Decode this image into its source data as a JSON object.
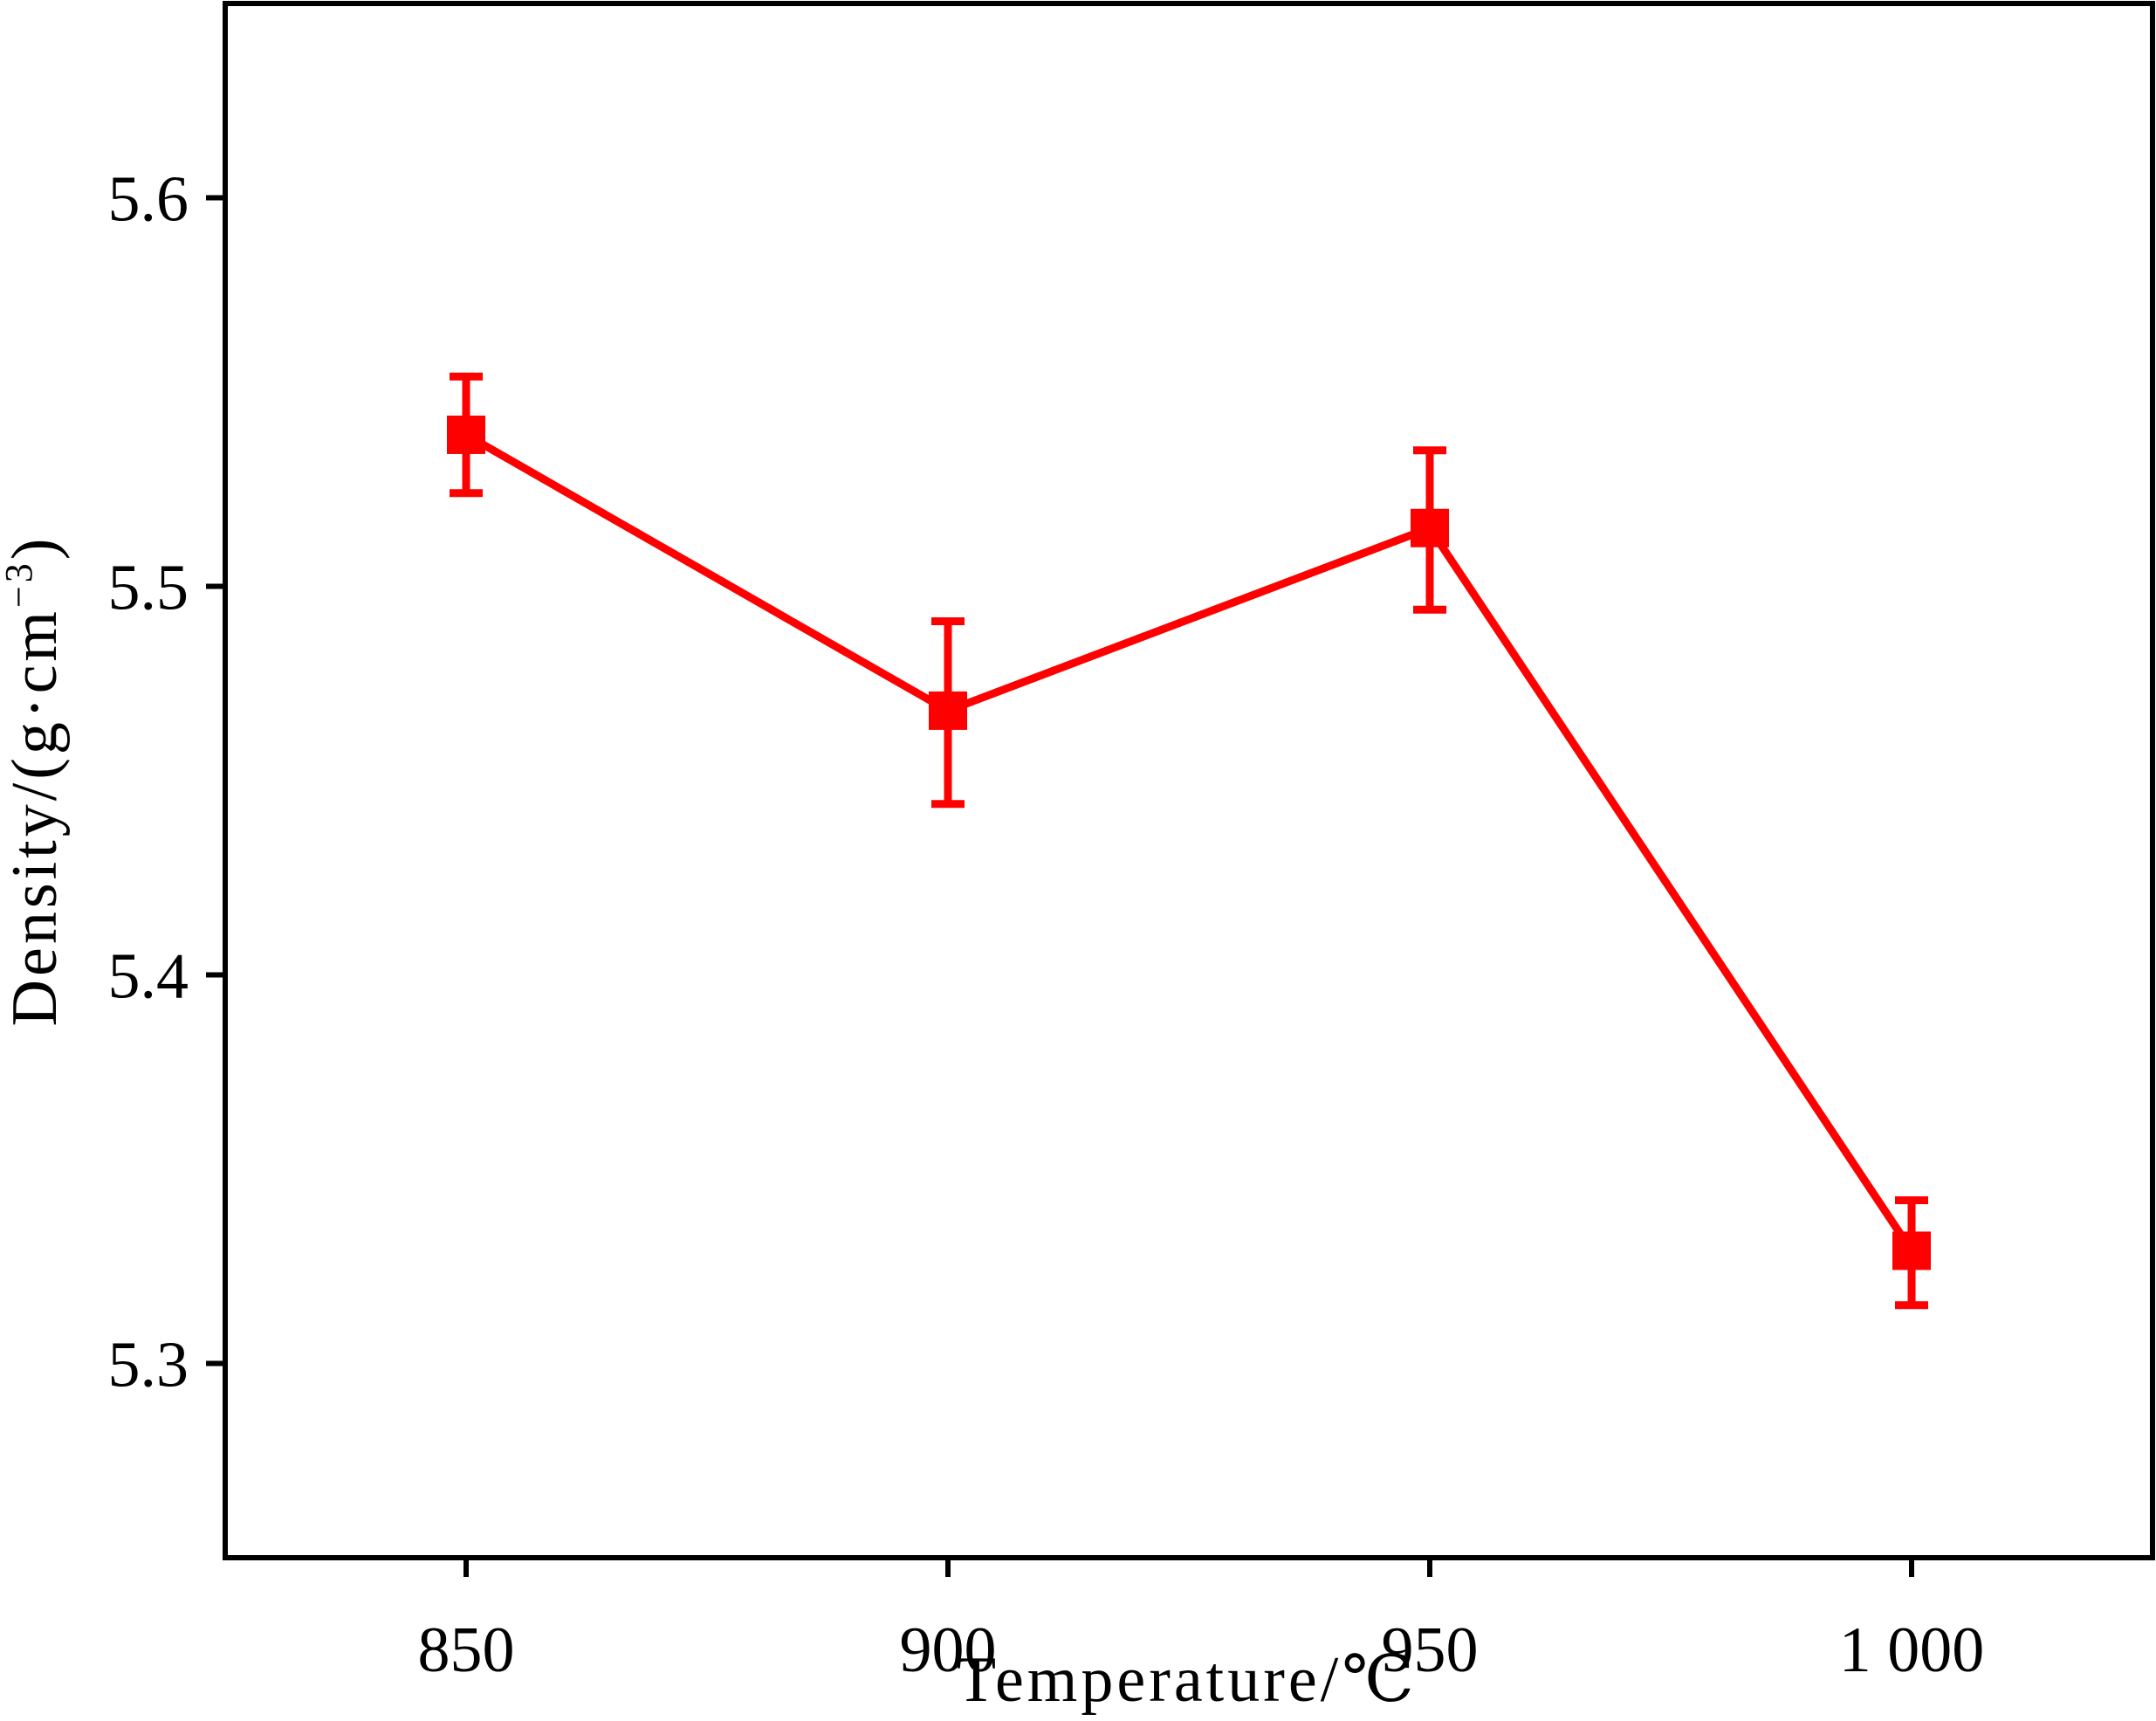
{
  "chart_data": {
    "type": "line",
    "title": "",
    "xlabel": "Temperature/℃",
    "ylabel_text": "Density/(g·cm",
    "ylabel_sup": "−3",
    "ylabel_close": ")",
    "xlim": [
      825,
      1025
    ],
    "ylim": [
      5.25,
      5.65
    ],
    "x_ticks": [
      850,
      900,
      950,
      1000
    ],
    "x_tick_labels": [
      "850",
      "900",
      "950",
      "1 000"
    ],
    "y_ticks": [
      5.3,
      5.4,
      5.5,
      5.6
    ],
    "y_tick_labels": [
      "5.3",
      "5.4",
      "5.5",
      "5.6"
    ],
    "grid": false,
    "series": [
      {
        "color": "#ff0000",
        "marker": "square",
        "x": [
          850,
          900,
          950,
          1000
        ],
        "y": [
          5.539,
          5.468,
          5.515,
          5.329
        ],
        "err_low": [
          5.524,
          5.444,
          5.494,
          5.315
        ],
        "err_high": [
          5.554,
          5.491,
          5.535,
          5.342
        ]
      }
    ]
  }
}
